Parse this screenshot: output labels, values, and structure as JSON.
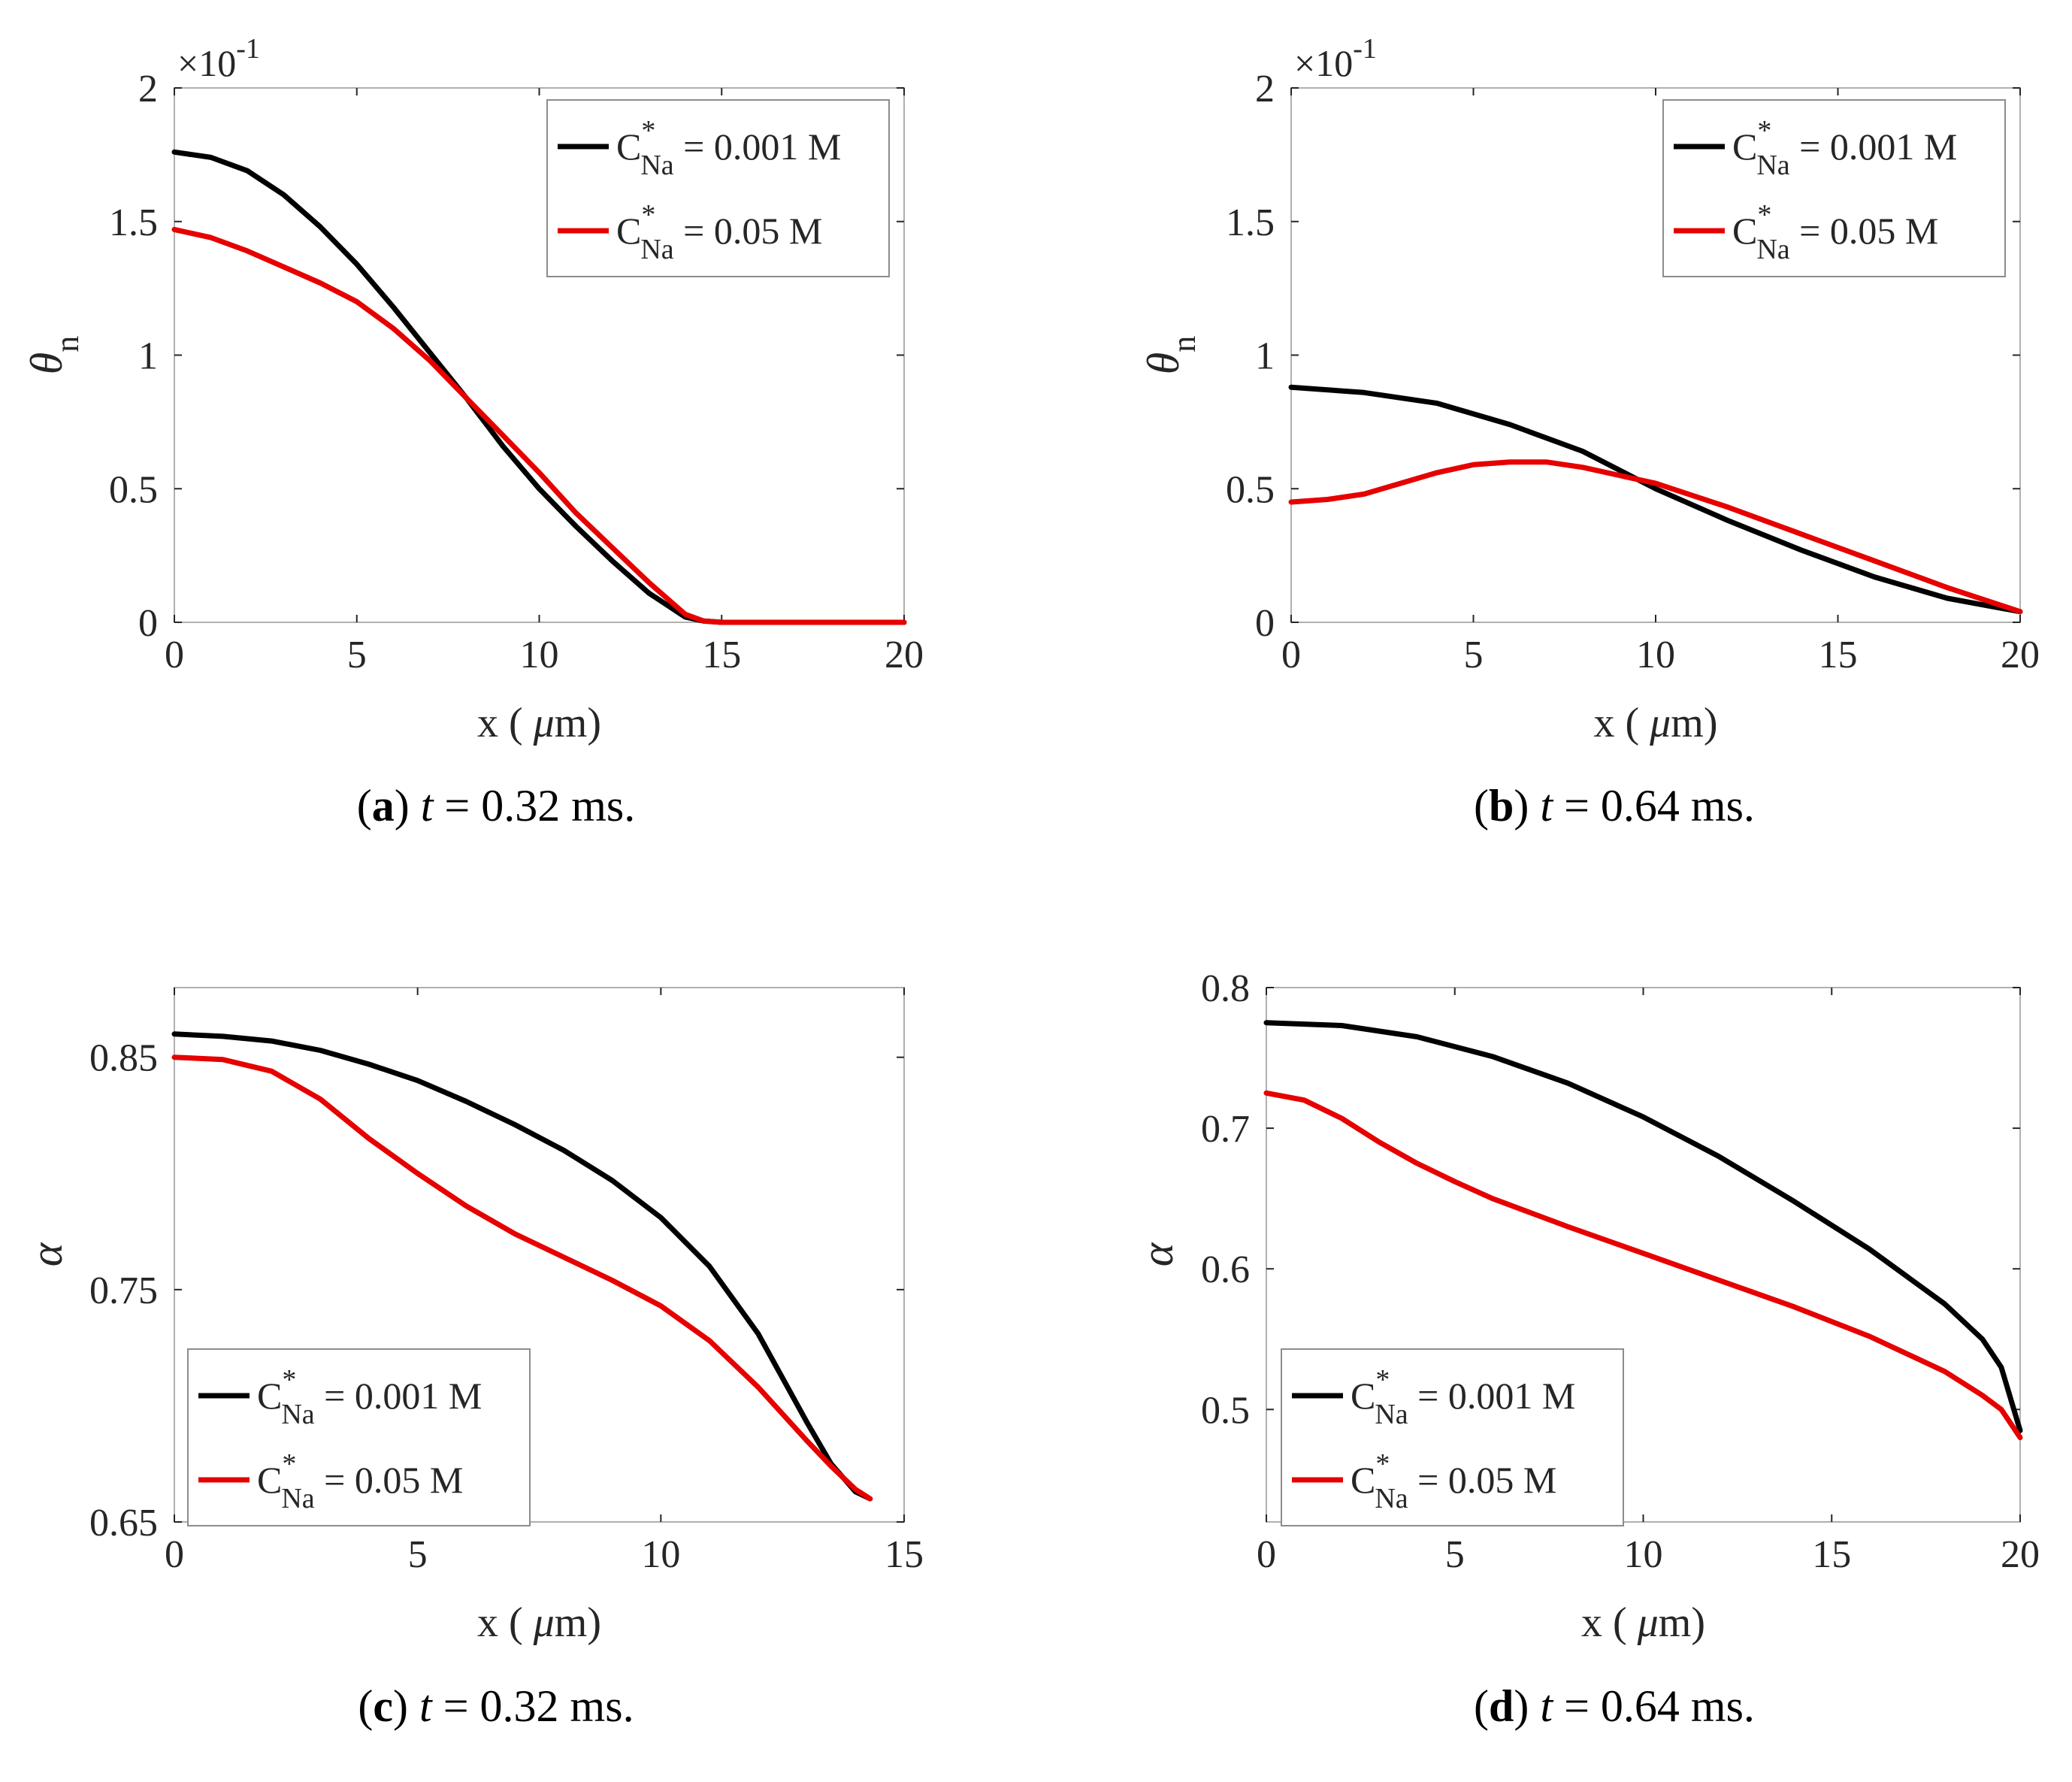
{
  "colors": {
    "black_series": "#000000",
    "red_series": "#e60000",
    "axis": "#262626",
    "frame": "#b0b0b0"
  },
  "chart_data": [
    {
      "id": "a",
      "type": "line",
      "caption": {
        "label": "a",
        "t_symbol": "t",
        "equals": "=",
        "value": "0.32 ms."
      },
      "xlabel": {
        "pre": "x ( ",
        "mu": "μ",
        "post": "m)"
      },
      "ylabel": {
        "symbol": "θ",
        "sub": "n"
      },
      "multiplier": {
        "base": "×10",
        "exp": "-1"
      },
      "xlim": [
        0,
        20
      ],
      "ylim": [
        0,
        2
      ],
      "xticks": [
        0,
        5,
        10,
        15,
        20
      ],
      "xtick_labels": [
        "0",
        "5",
        "10",
        "15",
        "20"
      ],
      "yticks": [
        0,
        0.5,
        1,
        1.5,
        2
      ],
      "ytick_labels": [
        "0",
        "0.5",
        "1",
        "1.5",
        "2"
      ],
      "legend_position": "top-right",
      "series": [
        {
          "legend_main": "C",
          "legend_sup": "*",
          "legend_sub": "Na",
          "legend_value": " = 0.001 M",
          "color": "#000000",
          "x": [
            0,
            1,
            2,
            3,
            4,
            5,
            6,
            7,
            8,
            9,
            10,
            11,
            12,
            13,
            14,
            14.5,
            15,
            16,
            17,
            18,
            19,
            20
          ],
          "y": [
            1.76,
            1.74,
            1.69,
            1.6,
            1.48,
            1.34,
            1.18,
            1.01,
            0.84,
            0.66,
            0.5,
            0.36,
            0.23,
            0.11,
            0.02,
            0.005,
            0,
            0,
            0,
            0,
            0,
            0
          ]
        },
        {
          "legend_main": "C",
          "legend_sup": "*",
          "legend_sub": "Na",
          "legend_value": " = 0.05 M",
          "color": "#e60000",
          "x": [
            0,
            1,
            2,
            3,
            4,
            5,
            6,
            7,
            8,
            9,
            10,
            11,
            12,
            13,
            14,
            14.5,
            15,
            16,
            17,
            18,
            19,
            20
          ],
          "y": [
            1.47,
            1.44,
            1.39,
            1.33,
            1.27,
            1.2,
            1.1,
            0.98,
            0.84,
            0.7,
            0.56,
            0.41,
            0.28,
            0.15,
            0.03,
            0.005,
            0,
            0,
            0,
            0,
            0,
            0
          ]
        }
      ]
    },
    {
      "id": "b",
      "type": "line",
      "caption": {
        "label": "b",
        "t_symbol": "t",
        "equals": "=",
        "value": "0.64 ms."
      },
      "xlabel": {
        "pre": "x ( ",
        "mu": "μ",
        "post": "m)"
      },
      "ylabel": {
        "symbol": "θ",
        "sub": "n"
      },
      "multiplier": {
        "base": "×10",
        "exp": "-1"
      },
      "xlim": [
        0,
        20
      ],
      "ylim": [
        0,
        2
      ],
      "xticks": [
        0,
        5,
        10,
        15,
        20
      ],
      "xtick_labels": [
        "0",
        "5",
        "10",
        "15",
        "20"
      ],
      "yticks": [
        0,
        0.5,
        1,
        1.5,
        2
      ],
      "ytick_labels": [
        "0",
        "0.5",
        "1",
        "1.5",
        "2"
      ],
      "legend_position": "top-right",
      "series": [
        {
          "legend_main": "C",
          "legend_sup": "*",
          "legend_sub": "Na",
          "legend_value": " = 0.001 M",
          "color": "#000000",
          "x": [
            0,
            2,
            4,
            6,
            8,
            10,
            12,
            14,
            16,
            18,
            20
          ],
          "y": [
            0.88,
            0.86,
            0.82,
            0.74,
            0.64,
            0.5,
            0.38,
            0.27,
            0.17,
            0.09,
            0.04
          ]
        },
        {
          "legend_main": "C",
          "legend_sup": "*",
          "legend_sub": "Na",
          "legend_value": " = 0.05 M",
          "color": "#e60000",
          "x": [
            0,
            1,
            2,
            3,
            4,
            5,
            6,
            7,
            8,
            9,
            10,
            12,
            14,
            16,
            18,
            20
          ],
          "y": [
            0.45,
            0.46,
            0.48,
            0.52,
            0.56,
            0.59,
            0.6,
            0.6,
            0.58,
            0.55,
            0.52,
            0.43,
            0.33,
            0.23,
            0.13,
            0.04
          ]
        }
      ]
    },
    {
      "id": "c",
      "type": "line",
      "caption": {
        "label": "c",
        "t_symbol": "t",
        "equals": "=",
        "value": "0.32 ms."
      },
      "xlabel": {
        "pre": "x ( ",
        "mu": "μ",
        "post": "m)"
      },
      "ylabel": {
        "symbol": "α",
        "sub": ""
      },
      "xlim": [
        0,
        15
      ],
      "ylim": [
        0.65,
        0.88
      ],
      "xticks": [
        0,
        5,
        10,
        15
      ],
      "xtick_labels": [
        "0",
        "5",
        "10",
        "15"
      ],
      "yticks": [
        0.65,
        0.75,
        0.85
      ],
      "ytick_labels": [
        "0.65",
        "0.75",
        "0.85"
      ],
      "legend_position": "bottom-left",
      "series": [
        {
          "legend_main": "C",
          "legend_sup": "*",
          "legend_sub": "Na",
          "legend_value": " = 0.001 M",
          "color": "#000000",
          "x": [
            0,
            1,
            2,
            3,
            4,
            5,
            6,
            7,
            8,
            9,
            10,
            11,
            12,
            13,
            13.5,
            14,
            14.3
          ],
          "y": [
            0.86,
            0.859,
            0.857,
            0.853,
            0.847,
            0.84,
            0.831,
            0.821,
            0.81,
            0.797,
            0.781,
            0.76,
            0.731,
            0.693,
            0.675,
            0.663,
            0.66
          ]
        },
        {
          "legend_main": "C",
          "legend_sup": "*",
          "legend_sub": "Na",
          "legend_value": " = 0.05 M",
          "color": "#e60000",
          "x": [
            0,
            1,
            2,
            3,
            4,
            5,
            6,
            7,
            8,
            9,
            10,
            11,
            12,
            13,
            13.5,
            14,
            14.3
          ],
          "y": [
            0.85,
            0.849,
            0.844,
            0.832,
            0.815,
            0.8,
            0.786,
            0.774,
            0.764,
            0.754,
            0.743,
            0.728,
            0.708,
            0.685,
            0.674,
            0.664,
            0.66
          ]
        }
      ]
    },
    {
      "id": "d",
      "type": "line",
      "caption": {
        "label": "d",
        "t_symbol": "t",
        "equals": "=",
        "value": "0.64 ms."
      },
      "xlabel": {
        "pre": "x ( ",
        "mu": "μ",
        "post": "m)"
      },
      "ylabel": {
        "symbol": "α",
        "sub": ""
      },
      "xlim": [
        0,
        20
      ],
      "ylim": [
        0.42,
        0.8
      ],
      "xticks": [
        0,
        5,
        10,
        15,
        20
      ],
      "xtick_labels": [
        "0",
        "5",
        "10",
        "15",
        "20"
      ],
      "yticks": [
        0.5,
        0.6,
        0.7,
        0.8
      ],
      "ytick_labels": [
        "0.5",
        "0.6",
        "0.7",
        "0.8"
      ],
      "legend_position": "bottom-left",
      "series": [
        {
          "legend_main": "C",
          "legend_sup": "*",
          "legend_sub": "Na",
          "legend_value": " = 0.001 M",
          "color": "#000000",
          "x": [
            0,
            2,
            4,
            6,
            8,
            10,
            12,
            14,
            16,
            18,
            19,
            19.5,
            20
          ],
          "y": [
            0.775,
            0.773,
            0.765,
            0.751,
            0.732,
            0.708,
            0.68,
            0.648,
            0.614,
            0.575,
            0.55,
            0.53,
            0.485
          ]
        },
        {
          "legend_main": "C",
          "legend_sup": "*",
          "legend_sub": "Na",
          "legend_value": " = 0.05 M",
          "color": "#e60000",
          "x": [
            0,
            1,
            2,
            3,
            4,
            5,
            6,
            7,
            8,
            10,
            12,
            14,
            16,
            18,
            19,
            19.5,
            20
          ],
          "y": [
            0.725,
            0.72,
            0.707,
            0.69,
            0.675,
            0.662,
            0.65,
            0.64,
            0.63,
            0.611,
            0.592,
            0.573,
            0.552,
            0.527,
            0.51,
            0.5,
            0.48
          ]
        }
      ]
    }
  ]
}
